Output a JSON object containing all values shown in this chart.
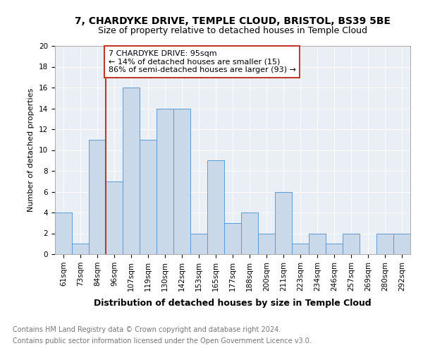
{
  "title1": "7, CHARDYKE DRIVE, TEMPLE CLOUD, BRISTOL, BS39 5BE",
  "title2": "Size of property relative to detached houses in Temple Cloud",
  "xlabel": "Distribution of detached houses by size in Temple Cloud",
  "ylabel": "Number of detached properties",
  "footer1": "Contains HM Land Registry data © Crown copyright and database right 2024.",
  "footer2": "Contains public sector information licensed under the Open Government Licence v3.0.",
  "categories": [
    "61sqm",
    "73sqm",
    "84sqm",
    "96sqm",
    "107sqm",
    "119sqm",
    "130sqm",
    "142sqm",
    "153sqm",
    "165sqm",
    "177sqm",
    "188sqm",
    "200sqm",
    "211sqm",
    "223sqm",
    "234sqm",
    "246sqm",
    "257sqm",
    "269sqm",
    "280sqm",
    "292sqm"
  ],
  "values": [
    4,
    1,
    11,
    7,
    16,
    11,
    14,
    14,
    2,
    9,
    3,
    4,
    2,
    6,
    1,
    2,
    1,
    2,
    0,
    2,
    2
  ],
  "bar_color": "#c9d9ea",
  "bar_edge_color": "#5b9bd5",
  "vline_index": 3,
  "vline_color": "#c0392b",
  "annotation_title": "7 CHARDYKE DRIVE: 95sqm",
  "annotation_line1": "← 14% of detached houses are smaller (15)",
  "annotation_line2": "86% of semi-detached houses are larger (93) →",
  "annotation_box_color": "#c0392b",
  "ylim": [
    0,
    20
  ],
  "yticks": [
    0,
    2,
    4,
    6,
    8,
    10,
    12,
    14,
    16,
    18,
    20
  ],
  "bg_color": "#eaeff5",
  "grid_color": "#ffffff",
  "title1_fontsize": 10,
  "title2_fontsize": 9,
  "xlabel_fontsize": 9,
  "ylabel_fontsize": 8,
  "tick_fontsize": 7.5,
  "footer_fontsize": 7,
  "annot_fontsize": 8
}
